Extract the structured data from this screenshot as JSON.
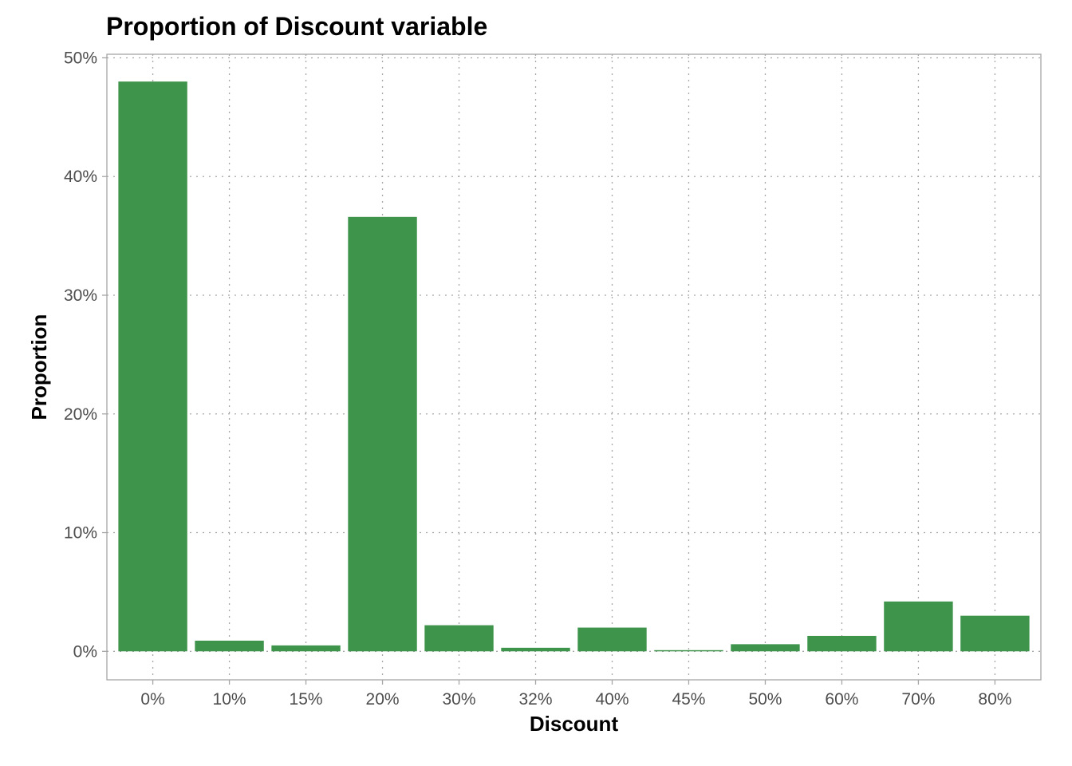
{
  "chart_data": {
    "type": "bar",
    "title": "Proportion of Discount variable",
    "xlabel": "Discount",
    "ylabel": "Proportion",
    "categories": [
      "0%",
      "10%",
      "15%",
      "20%",
      "30%",
      "32%",
      "40%",
      "45%",
      "50%",
      "60%",
      "70%",
      "80%"
    ],
    "values": [
      0.48,
      0.009,
      0.005,
      0.366,
      0.022,
      0.003,
      0.02,
      0.001,
      0.006,
      0.013,
      0.042,
      0.03
    ],
    "y_ticks": [
      0,
      0.1,
      0.2,
      0.3,
      0.4,
      0.5
    ],
    "y_tick_labels": [
      "0%",
      "10%",
      "20%",
      "30%",
      "40%",
      "50%"
    ],
    "ylim": [
      -0.024,
      0.503
    ],
    "grid": true,
    "legend": "none",
    "bar_color": "#3e944b"
  }
}
